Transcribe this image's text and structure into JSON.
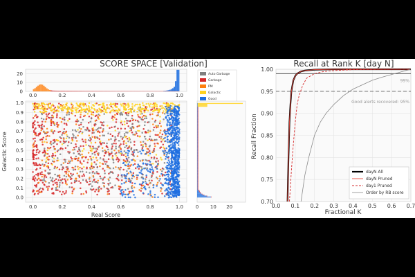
{
  "chart_data": [
    {
      "type": "scatter",
      "title": "SCORE SPACE [Validation]",
      "xlabel": "Real Score",
      "ylabel": "Galactic Score",
      "xlim": [
        -0.05,
        1.05
      ],
      "ylim": [
        -0.05,
        1.02
      ],
      "x_ticks": [
        0.0,
        0.2,
        0.4,
        0.6,
        0.8,
        1.0
      ],
      "y_ticks": [
        0.0,
        0.1,
        0.2,
        0.3,
        0.4,
        0.5,
        0.6,
        0.7,
        0.8,
        0.9,
        1.0
      ],
      "top_hist_ticks": [
        0,
        10,
        20
      ],
      "right_hist_ticks": [
        0,
        10,
        20
      ],
      "legend_position": "top-right of upper histogram",
      "series": [
        {
          "name": "Auto Garbage",
          "color": "#7f7f7f"
        },
        {
          "name": "Garbage",
          "color": "#d62728"
        },
        {
          "name": "PM",
          "color": "#ff7f0e"
        },
        {
          "name": "Galactic",
          "color": "#ffd21f"
        },
        {
          "name": "Good",
          "color": "#1f6fe0"
        }
      ]
    },
    {
      "type": "line",
      "title": "Recall at Rank K [day N]",
      "xlabel": "Fractional K",
      "ylabel": "Recall Fraction",
      "xlim": [
        0.0,
        0.7
      ],
      "ylim": [
        0.7,
        1.0
      ],
      "x_ticks": [
        0.0,
        0.1,
        0.2,
        0.3,
        0.4,
        0.5,
        0.6,
        0.7
      ],
      "y_ticks": [
        0.7,
        0.75,
        0.8,
        0.85,
        0.9,
        0.95,
        1.0
      ],
      "hlines": [
        {
          "y": 0.99,
          "style": "solid",
          "label": "99%"
        },
        {
          "y": 0.95,
          "style": "dashed",
          "label": "Good alerts recovered: 95%"
        }
      ],
      "legend_position": "lower-right",
      "series": [
        {
          "name": "dayN All",
          "color": "#000000",
          "style": "solid-thick",
          "x": [
            0.06,
            0.065,
            0.07,
            0.075,
            0.08,
            0.09,
            0.1,
            0.11,
            0.13,
            0.15,
            0.2,
            0.3,
            0.7
          ],
          "y": [
            0.7,
            0.8,
            0.88,
            0.92,
            0.95,
            0.975,
            0.985,
            0.99,
            0.995,
            0.997,
            0.999,
            1.0,
            1.0
          ]
        },
        {
          "name": "dayN Pruned",
          "color": "#e8463a",
          "style": "solid",
          "x": [
            0.06,
            0.065,
            0.07,
            0.075,
            0.08,
            0.09,
            0.1,
            0.11,
            0.13,
            0.15,
            0.2,
            0.3,
            0.7
          ],
          "y": [
            0.7,
            0.8,
            0.88,
            0.92,
            0.95,
            0.975,
            0.985,
            0.99,
            0.995,
            0.997,
            0.999,
            1.0,
            1.0
          ]
        },
        {
          "name": "day1 Pruned",
          "color": "#d62728",
          "style": "dashed",
          "x": [
            0.07,
            0.08,
            0.09,
            0.1,
            0.11,
            0.12,
            0.14,
            0.16,
            0.2,
            0.25,
            0.3,
            0.4,
            0.7
          ],
          "y": [
            0.7,
            0.77,
            0.83,
            0.88,
            0.92,
            0.94,
            0.965,
            0.98,
            0.99,
            0.995,
            0.997,
            0.999,
            1.0
          ]
        },
        {
          "name": "Order by RB score",
          "color": "#888888",
          "style": "solid-thin",
          "x": [
            0.13,
            0.15,
            0.17,
            0.2,
            0.23,
            0.26,
            0.3,
            0.35,
            0.4,
            0.45,
            0.5,
            0.55,
            0.6,
            0.65,
            0.7
          ],
          "y": [
            0.7,
            0.76,
            0.8,
            0.85,
            0.88,
            0.9,
            0.92,
            0.94,
            0.955,
            0.965,
            0.975,
            0.982,
            0.988,
            0.994,
            1.0
          ]
        }
      ]
    }
  ]
}
